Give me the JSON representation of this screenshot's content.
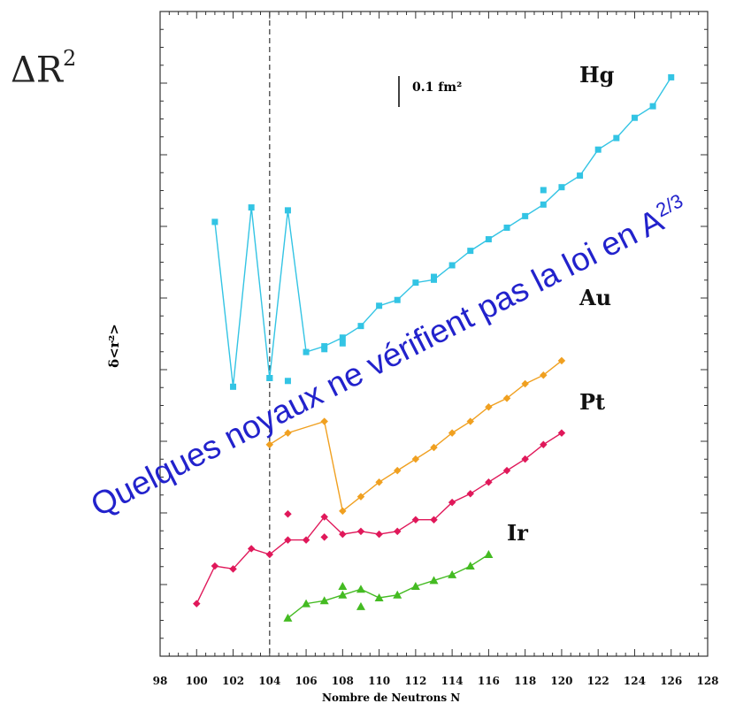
{
  "corner_label": "ΔR",
  "corner_label_exp": "2",
  "overlay": {
    "text": "Quelques noyaux ne vérifient pas la loi en A",
    "exponent": "2/3"
  },
  "scale_bar_label": "0.1 fm²",
  "chart_data": {
    "type": "line",
    "xlabel": "Nombre de Neutrons N",
    "ylabel": "δ<r²>",
    "xlim": [
      98,
      128
    ],
    "xticks": [
      "98",
      "100",
      "102",
      "104",
      "106",
      "108",
      "110",
      "112",
      "114",
      "116",
      "118",
      "120",
      "122",
      "124",
      "126",
      "128"
    ],
    "ylim": [
      0,
      10
    ],
    "reference_line_x": 104,
    "grid": false,
    "series": [
      {
        "name": "Hg",
        "color": "#33c4e4",
        "points": [
          [
            101,
            7.05
          ],
          [
            102,
            4.2
          ],
          [
            103,
            7.3
          ],
          [
            104,
            4.35
          ],
          [
            105,
            7.25
          ],
          [
            106,
            4.8
          ],
          [
            107,
            4.9
          ],
          [
            108,
            5.05
          ],
          [
            109,
            5.25
          ],
          [
            110,
            5.6
          ],
          [
            111,
            5.7
          ],
          [
            112,
            6.0
          ],
          [
            113,
            6.05
          ],
          [
            114,
            6.3
          ],
          [
            115,
            6.55
          ],
          [
            116,
            6.75
          ],
          [
            117,
            6.95
          ],
          [
            118,
            7.15
          ],
          [
            119,
            7.35
          ],
          [
            120,
            7.65
          ],
          [
            121,
            7.85
          ],
          [
            122,
            8.3
          ],
          [
            123,
            8.5
          ],
          [
            124,
            8.85
          ],
          [
            125,
            9.05
          ],
          [
            126,
            9.55
          ]
        ],
        "extra_points": [
          [
            104,
            4.35
          ],
          [
            105,
            4.3
          ],
          [
            107,
            4.85
          ],
          [
            108,
            4.95
          ],
          [
            113,
            6.1
          ],
          [
            119,
            7.6
          ]
        ]
      },
      {
        "name": "Au",
        "color": "#f0a020",
        "points": [
          [
            104,
            3.2
          ],
          [
            105,
            3.4
          ],
          [
            107,
            3.6
          ],
          [
            108,
            2.05
          ],
          [
            109,
            2.3
          ],
          [
            110,
            2.55
          ],
          [
            111,
            2.75
          ],
          [
            112,
            2.95
          ],
          [
            113,
            3.15
          ],
          [
            114,
            3.4
          ],
          [
            115,
            3.6
          ],
          [
            116,
            3.85
          ],
          [
            117,
            4.0
          ],
          [
            118,
            4.25
          ],
          [
            119,
            4.4
          ],
          [
            120,
            4.65
          ]
        ]
      },
      {
        "name": "Pt",
        "color": "#e0185a",
        "points": [
          [
            100,
            0.45
          ],
          [
            101,
            1.1
          ],
          [
            102,
            1.05
          ],
          [
            103,
            1.4
          ],
          [
            104,
            1.3
          ],
          [
            105,
            1.55
          ],
          [
            106,
            1.55
          ],
          [
            107,
            1.95
          ],
          [
            108,
            1.65
          ],
          [
            109,
            1.7
          ],
          [
            110,
            1.65
          ],
          [
            111,
            1.7
          ],
          [
            112,
            1.9
          ],
          [
            113,
            1.9
          ],
          [
            114,
            2.2
          ],
          [
            115,
            2.35
          ],
          [
            116,
            2.55
          ],
          [
            117,
            2.75
          ],
          [
            118,
            2.95
          ],
          [
            119,
            3.2
          ],
          [
            120,
            3.4
          ]
        ],
        "extra_points": [
          [
            105,
            2.0
          ],
          [
            107,
            1.6
          ]
        ]
      },
      {
        "name": "Ir",
        "color": "#44bb22",
        "points": [
          [
            105,
            0.2
          ],
          [
            106,
            0.45
          ],
          [
            107,
            0.5
          ],
          [
            108,
            0.6
          ],
          [
            109,
            0.7
          ],
          [
            110,
            0.55
          ],
          [
            111,
            0.6
          ],
          [
            112,
            0.75
          ],
          [
            113,
            0.85
          ],
          [
            114,
            0.95
          ],
          [
            115,
            1.1
          ],
          [
            116,
            1.3
          ]
        ],
        "extra_points": [
          [
            108,
            0.75
          ],
          [
            109,
            0.4
          ]
        ]
      }
    ]
  }
}
